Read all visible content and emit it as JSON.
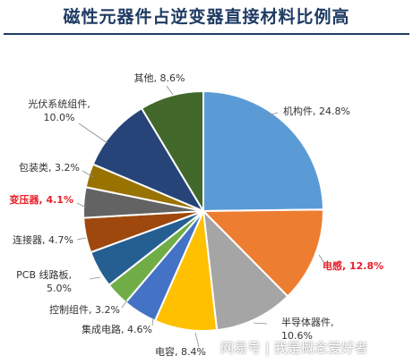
{
  "chart_data": {
    "type": "pie",
    "title": "磁性元器件占逆变器直接材料比例高",
    "slices": [
      {
        "lines": [
          "机构件, 24.8%"
        ],
        "value": 24.8,
        "color": "#5b9bd5",
        "emphasis": false
      },
      {
        "lines": [
          "电感, 12.8%"
        ],
        "value": 12.8,
        "color": "#ed7d31",
        "emphasis": true
      },
      {
        "lines": [
          "半导体器件,",
          "10.6%"
        ],
        "value": 10.6,
        "color": "#a5a5a5",
        "emphasis": false
      },
      {
        "lines": [
          "电容, 8.4%"
        ],
        "value": 8.4,
        "color": "#ffc000",
        "emphasis": false
      },
      {
        "lines": [
          "集成电路, 4.6%"
        ],
        "value": 4.6,
        "color": "#4472c4",
        "emphasis": false
      },
      {
        "lines": [
          "控制组件, 3.2%"
        ],
        "value": 3.2,
        "color": "#70ad47",
        "emphasis": false
      },
      {
        "lines": [
          "PCB 线路板,",
          "5.0%"
        ],
        "value": 5.0,
        "color": "#255e91",
        "emphasis": false
      },
      {
        "lines": [
          "连接器, 4.7%"
        ],
        "value": 4.7,
        "color": "#9e480e",
        "emphasis": false
      },
      {
        "lines": [
          "变压器, 4.1%"
        ],
        "value": 4.1,
        "color": "#636363",
        "emphasis": true
      },
      {
        "lines": [
          "包装类, 3.2%"
        ],
        "value": 3.2,
        "color": "#997300",
        "emphasis": false
      },
      {
        "lines": [
          "光伏系统组件,",
          "10.0%"
        ],
        "value": 10.0,
        "color": "#264478",
        "emphasis": false
      },
      {
        "lines": [
          "其他, 8.6%"
        ],
        "value": 8.6,
        "color": "#43682b",
        "emphasis": false
      }
    ],
    "label_color": "#333333",
    "emphasis_color": "#e8202a"
  },
  "watermark": "网易号 | 我是概念爱好者"
}
